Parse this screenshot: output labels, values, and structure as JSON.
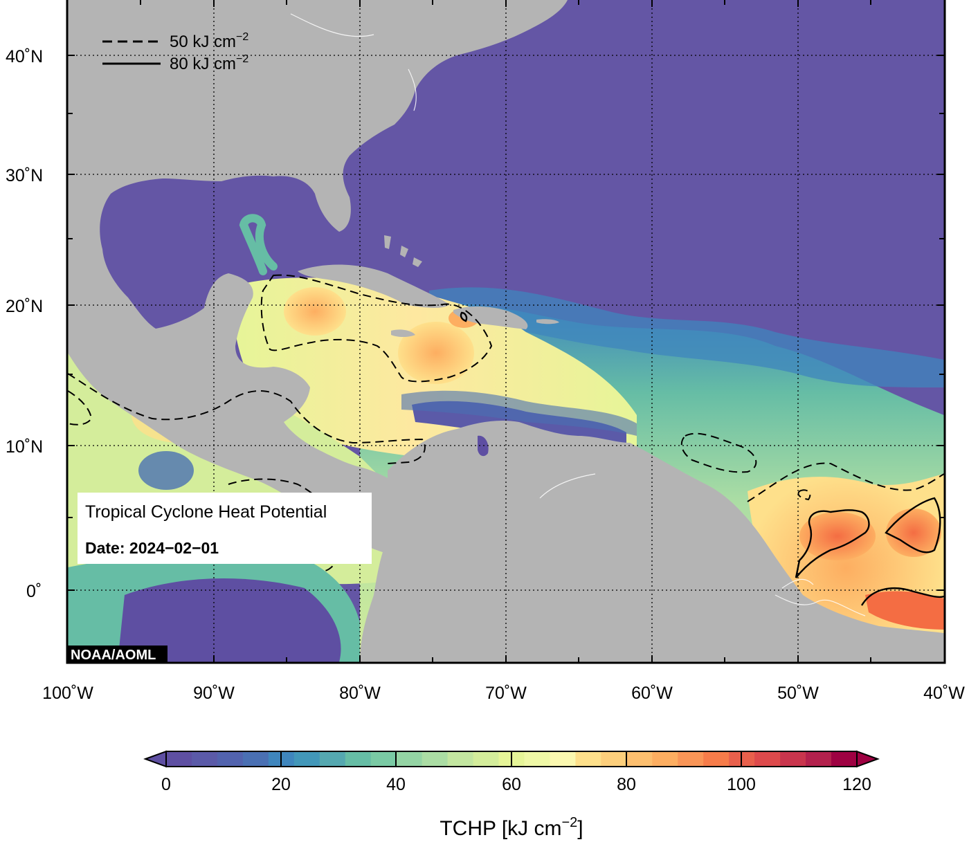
{
  "map": {
    "legend": [
      {
        "style": "dashed",
        "label": "50 kJ cm",
        "sup": "−2"
      },
      {
        "style": "solid",
        "label": "80 kJ cm",
        "sup": "−2"
      }
    ],
    "lat_labels": [
      "40˚N",
      "30˚N",
      "20˚N",
      "10˚N",
      "0˚"
    ],
    "lon_labels": [
      "100˚W",
      "90˚W",
      "80˚W",
      "70˚W",
      "60˚W",
      "50˚W",
      "40˚W"
    ],
    "info_title": "Tropical Cyclone Heat Potential",
    "info_date": "Date: 2024−02−01",
    "credit": "NOAA/AOML",
    "colors": {
      "land": "#b4b4b4",
      "ocean_low": "#6456a5",
      "frame": "#000000"
    }
  },
  "colorbar": {
    "tick_labels": [
      "0",
      "20",
      "40",
      "60",
      "80",
      "100",
      "120"
    ],
    "title": "TCHP [kJ cm",
    "title_sup": "−2",
    "title_end": "]",
    "colors": [
      "#5e4fa2",
      "#5b5aa8",
      "#5263ae",
      "#4a70b3",
      "#3f86bd",
      "#4297b9",
      "#55a8b0",
      "#66bda5",
      "#7acaa4",
      "#94d4a4",
      "#abdda4",
      "#c3e6a0",
      "#d4ed9b",
      "#e6f598",
      "#eff8a6",
      "#fbf8b0",
      "#fee08b",
      "#fdcf7c",
      "#fdbf6f",
      "#fdae61",
      "#f99557",
      "#f67c4a",
      "#e8604c",
      "#dd4a4c",
      "#c9354d",
      "#b3214d",
      "#9e0142"
    ]
  }
}
